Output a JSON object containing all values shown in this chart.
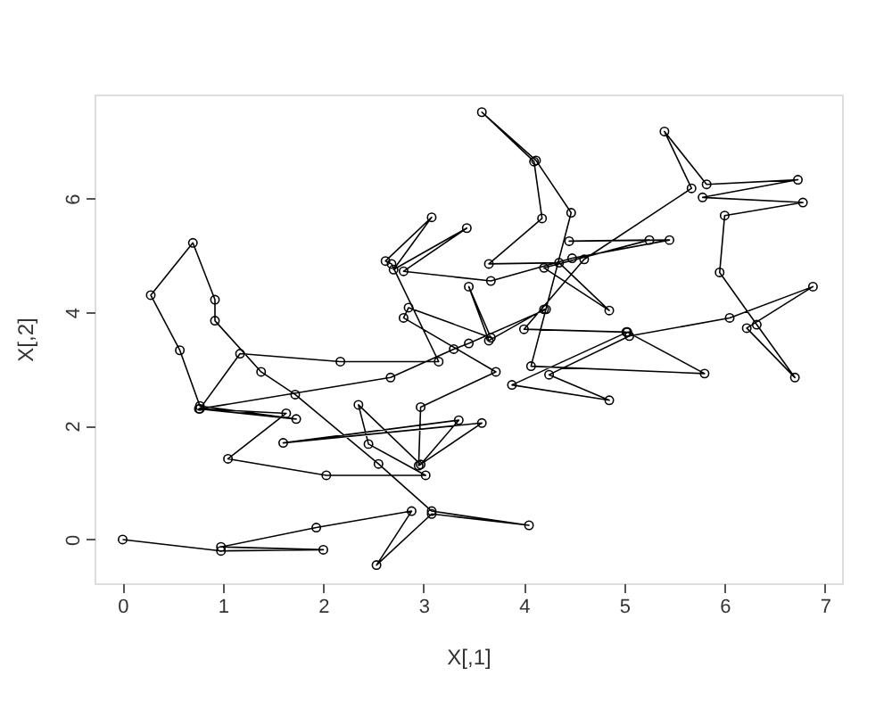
{
  "chart_data": {
    "type": "line",
    "xlabel": "X[,1]",
    "ylabel": "X[,2]",
    "marker": "circle",
    "line_style": "solid",
    "grid": false,
    "xlim": [
      -0.28,
      7.17
    ],
    "ylim": [
      -0.77,
      7.83
    ],
    "xticks": [
      0,
      1,
      2,
      3,
      4,
      5,
      6,
      7
    ],
    "yticks": [
      0,
      2,
      4,
      6
    ],
    "series": [
      {
        "color": "#000000",
        "x": [
          0,
          0.98,
          2.0,
          0.98,
          1.93,
          2.88,
          2.53,
          3.08,
          4.05,
          3.08,
          2.55,
          1.72,
          1.38,
          0.92,
          0.92,
          0.7,
          0.28,
          0.57,
          0.77,
          1.73,
          0.76,
          1.63,
          1.05,
          2.03,
          3.02,
          2.45,
          2.35,
          2.97,
          3.35,
          1.6,
          3.58,
          2.95,
          2.97,
          3.72,
          2.8,
          2.85,
          3.67,
          3.45,
          3.65,
          4.2,
          4.22,
          3.45,
          3.3,
          2.67,
          0.77,
          1.17,
          2.17,
          3.15,
          2.68,
          2.62,
          3.08,
          2.7,
          3.43,
          2.8,
          3.67,
          4.48,
          5.45,
          4.45,
          5.25,
          4.2,
          4.85,
          4.35,
          3.65,
          4.18,
          4.1,
          3.58,
          4.12,
          4.47,
          4.07,
          5.8,
          5.03,
          3.88,
          4.85,
          4.25,
          5.05,
          6.05,
          6.88,
          6.22,
          6.7,
          6.32,
          5.95,
          6.0,
          6.78,
          5.78,
          6.73,
          5.82,
          5.4,
          5.67,
          4.6,
          4.0,
          5.02
        ],
        "values": [
          0,
          -0.2,
          -0.18,
          -0.13,
          0.21,
          0.5,
          -0.45,
          0.45,
          0.25,
          0.5,
          1.33,
          2.55,
          2.95,
          3.85,
          4.22,
          5.22,
          4.3,
          3.33,
          2.35,
          2.12,
          2.3,
          2.22,
          1.42,
          1.13,
          1.13,
          1.68,
          2.37,
          1.32,
          2.1,
          1.7,
          2.05,
          1.3,
          2.33,
          2.95,
          3.9,
          4.08,
          3.55,
          4.45,
          3.5,
          4.05,
          4.05,
          3.45,
          3.35,
          2.85,
          2.3,
          3.27,
          3.13,
          3.13,
          4.85,
          4.9,
          5.67,
          4.75,
          5.48,
          4.72,
          4.55,
          4.95,
          5.27,
          5.25,
          5.27,
          4.78,
          4.03,
          4.87,
          4.85,
          5.65,
          6.65,
          7.52,
          6.67,
          5.75,
          3.05,
          2.92,
          3.65,
          2.72,
          2.45,
          2.9,
          3.58,
          3.9,
          4.45,
          3.72,
          2.85,
          3.78,
          4.7,
          5.7,
          5.93,
          6.02,
          6.33,
          6.25,
          7.18,
          6.18,
          4.93,
          3.7,
          3.65
        ]
      }
    ]
  }
}
